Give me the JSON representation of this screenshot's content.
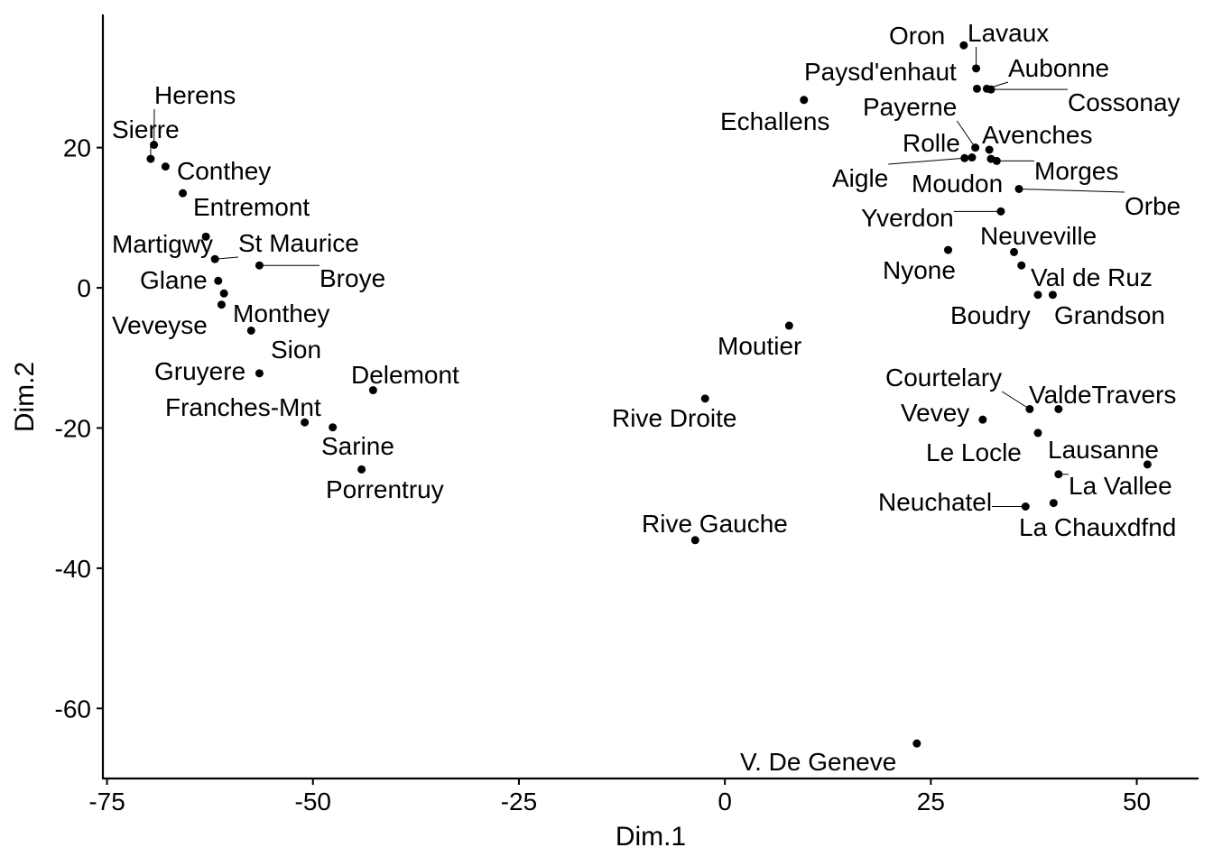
{
  "chart_data": {
    "type": "scatter",
    "title": "",
    "xlabel": "Dim.1",
    "ylabel": "Dim.2",
    "xlim": [
      -75.5,
      57.5
    ],
    "ylim": [
      -70,
      39
    ],
    "xticks": [
      -75,
      -50,
      -25,
      0,
      25,
      50
    ],
    "yticks": [
      20,
      0,
      -20,
      -40,
      -60
    ],
    "xtick_labels": [
      "-75",
      "-50",
      "-25",
      "0",
      "25",
      "50"
    ],
    "ytick_labels": [
      "20",
      "0",
      "-20",
      "-40",
      "-60"
    ],
    "grid": false,
    "legend": "none",
    "point_color": "#000000",
    "points": [
      {
        "label": "Herens",
        "x": -69.3,
        "y": 20.4
      },
      {
        "label": "Sierre",
        "x": -69.7,
        "y": 18.4
      },
      {
        "label": "Conthey",
        "x": -67.9,
        "y": 17.3
      },
      {
        "label": "Entremont",
        "x": -65.8,
        "y": 13.5
      },
      {
        "label": "Martigwy",
        "x": -63.0,
        "y": 7.3
      },
      {
        "label": "St Maurice",
        "x": -61.9,
        "y": 4.1
      },
      {
        "label": "Broye",
        "x": -56.5,
        "y": 3.2
      },
      {
        "label": "Glane",
        "x": -61.5,
        "y": 1.0
      },
      {
        "label": "Veveyse",
        "x": -60.8,
        "y": -0.8
      },
      {
        "label": "Monthey",
        "x": -61.1,
        "y": -2.4
      },
      {
        "label": "Sion",
        "x": -57.5,
        "y": -6.1
      },
      {
        "label": "Gruyere",
        "x": -56.5,
        "y": -12.2
      },
      {
        "label": "Delemont",
        "x": -42.7,
        "y": -14.6
      },
      {
        "label": "Franches-Mnt",
        "x": -51.0,
        "y": -19.2
      },
      {
        "label": "Sarine",
        "x": -47.6,
        "y": -19.9
      },
      {
        "label": "Porrentruy",
        "x": -44.1,
        "y": -25.9
      },
      {
        "label": "Rive Droite",
        "x": -2.4,
        "y": -15.8
      },
      {
        "label": "Rive Gauche",
        "x": -3.6,
        "y": -36.0
      },
      {
        "label": "Moutier",
        "x": 7.8,
        "y": -5.4
      },
      {
        "label": "Echallens",
        "x": 9.6,
        "y": 26.8
      },
      {
        "label": "V. De Geneve",
        "x": 23.3,
        "y": -65.0
      },
      {
        "label": "Oron",
        "x": 29.0,
        "y": 34.6
      },
      {
        "label": "Lavaux",
        "x": 30.5,
        "y": 31.3
      },
      {
        "label": "Paysd'enhaut",
        "x": 30.6,
        "y": 28.4
      },
      {
        "label": "Aubonne",
        "x": 31.8,
        "y": 28.4
      },
      {
        "label": "Cossonay",
        "x": 32.3,
        "y": 28.3
      },
      {
        "label": "Payerne",
        "x": 30.4,
        "y": 20.0
      },
      {
        "label": "Avenches",
        "x": 32.1,
        "y": 19.7
      },
      {
        "label": "Rolle",
        "x": 30.0,
        "y": 18.6
      },
      {
        "label": "Aigle",
        "x": 29.1,
        "y": 18.5
      },
      {
        "label": "Morges",
        "x": 33.0,
        "y": 18.1
      },
      {
        "label": "Moudon",
        "x": 32.3,
        "y": 18.4
      },
      {
        "label": "Orbe",
        "x": 35.7,
        "y": 14.1
      },
      {
        "label": "Yverdon",
        "x": 33.5,
        "y": 10.9
      },
      {
        "label": "Nyone",
        "x": 27.1,
        "y": 5.4
      },
      {
        "label": "Neuveville",
        "x": 35.1,
        "y": 5.1
      },
      {
        "label": "Val de Ruz",
        "x": 36.0,
        "y": 3.2
      },
      {
        "label": "Boudry",
        "x": 38.0,
        "y": -1.0
      },
      {
        "label": "Grandson",
        "x": 39.8,
        "y": -1.0
      },
      {
        "label": "Courtelary",
        "x": 37.0,
        "y": -17.3
      },
      {
        "label": "ValdeTravers",
        "x": 40.5,
        "y": -17.3
      },
      {
        "label": "Vevey",
        "x": 31.3,
        "y": -18.8
      },
      {
        "label": "Le Locle",
        "x": 38.0,
        "y": -20.7
      },
      {
        "label": "Lausanne",
        "x": 51.3,
        "y": -25.2
      },
      {
        "label": "La Vallee",
        "x": 40.5,
        "y": -26.6
      },
      {
        "label": "Neuchatel",
        "x": 36.5,
        "y": -31.2
      },
      {
        "label": "La Chauxdfnd",
        "x": 39.9,
        "y": -30.7
      }
    ]
  }
}
